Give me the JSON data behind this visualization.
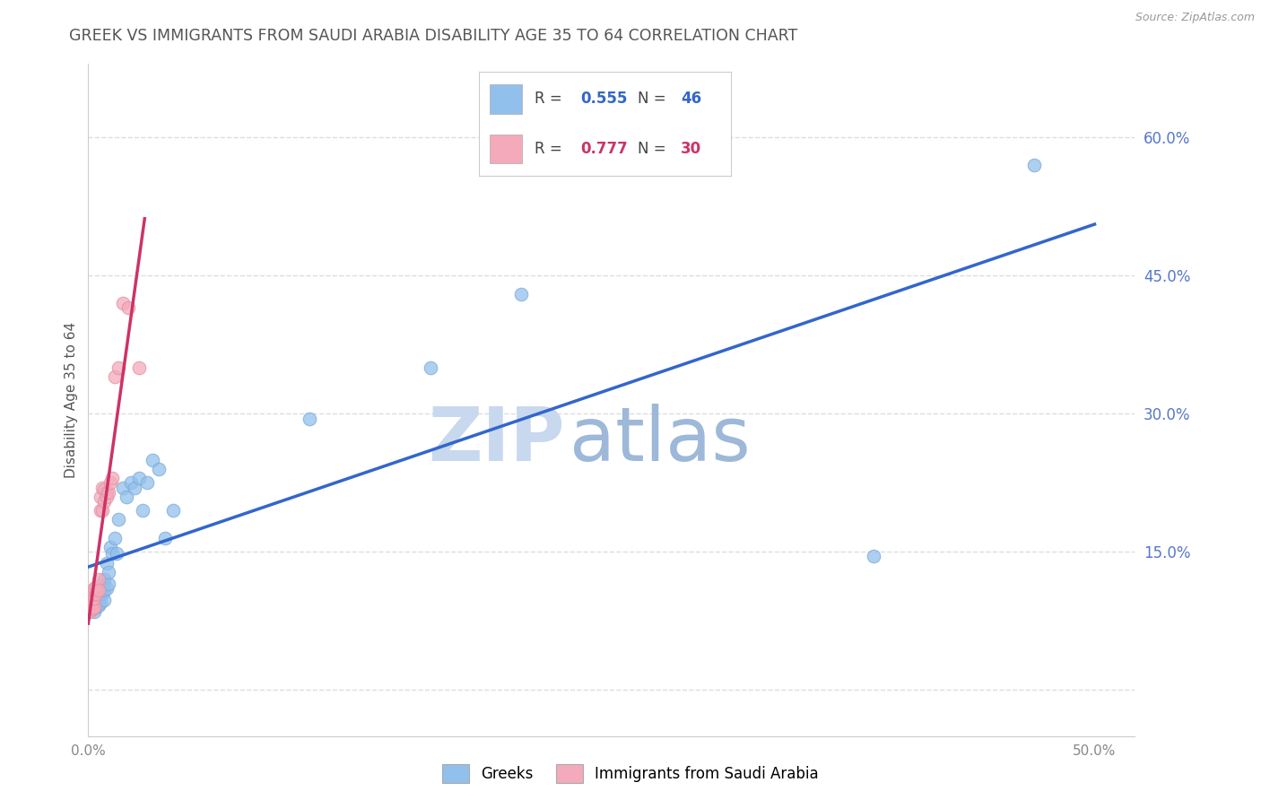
{
  "title": "GREEK VS IMMIGRANTS FROM SAUDI ARABIA DISABILITY AGE 35 TO 64 CORRELATION CHART",
  "source": "Source: ZipAtlas.com",
  "ylabel": "Disability Age 35 to 64",
  "xlim": [
    0.0,
    0.52
  ],
  "ylim": [
    -0.05,
    0.68
  ],
  "ytick_vals": [
    0.0,
    0.15,
    0.3,
    0.45,
    0.6
  ],
  "ytick_labels": [
    "",
    "15.0%",
    "30.0%",
    "45.0%",
    "60.0%"
  ],
  "xtick_vals": [
    0.0,
    0.1,
    0.2,
    0.3,
    0.4,
    0.5
  ],
  "xtick_labels": [
    "0.0%",
    "",
    "",
    "",
    "",
    "50.0%"
  ],
  "greek_color": "#92C0EC",
  "greek_edge": "#7AAAD8",
  "saudi_color": "#F4AABB",
  "saudi_edge": "#E090A0",
  "greek_line_color": "#3366CC",
  "saudi_line_color": "#CC3366",
  "watermark_zip_color": "#C8D8EE",
  "watermark_atlas_color": "#9DB8D8",
  "background_color": "#ffffff",
  "grid_color": "#DDDDDD",
  "title_color": "#555555",
  "source_color": "#999999",
  "ylabel_color": "#555555",
  "ytick_color": "#5577CC",
  "xtick_color": "#888888",
  "legend_r1_color": "#3366CC",
  "legend_n1_color": "#3366CC",
  "legend_r2_color": "#CC3366",
  "legend_n2_color": "#CC3366",
  "greeks_x": [
    0.001,
    0.001,
    0.002,
    0.002,
    0.002,
    0.003,
    0.003,
    0.003,
    0.004,
    0.004,
    0.004,
    0.005,
    0.005,
    0.005,
    0.006,
    0.006,
    0.007,
    0.007,
    0.008,
    0.008,
    0.008,
    0.009,
    0.009,
    0.01,
    0.01,
    0.011,
    0.012,
    0.013,
    0.014,
    0.015,
    0.017,
    0.019,
    0.021,
    0.023,
    0.025,
    0.027,
    0.029,
    0.032,
    0.035,
    0.038,
    0.042,
    0.11,
    0.17,
    0.215,
    0.39,
    0.47
  ],
  "greeks_y": [
    0.09,
    0.095,
    0.088,
    0.092,
    0.1,
    0.085,
    0.093,
    0.1,
    0.09,
    0.095,
    0.105,
    0.092,
    0.098,
    0.105,
    0.095,
    0.108,
    0.105,
    0.115,
    0.098,
    0.108,
    0.12,
    0.11,
    0.138,
    0.115,
    0.128,
    0.155,
    0.148,
    0.165,
    0.148,
    0.185,
    0.22,
    0.21,
    0.225,
    0.22,
    0.23,
    0.195,
    0.225,
    0.25,
    0.24,
    0.165,
    0.195,
    0.295,
    0.35,
    0.43,
    0.145,
    0.57
  ],
  "saudi_x": [
    0.0005,
    0.001,
    0.001,
    0.001,
    0.002,
    0.002,
    0.002,
    0.003,
    0.003,
    0.003,
    0.004,
    0.004,
    0.005,
    0.005,
    0.006,
    0.006,
    0.007,
    0.007,
    0.008,
    0.008,
    0.009,
    0.009,
    0.01,
    0.011,
    0.012,
    0.013,
    0.015,
    0.017,
    0.02,
    0.025
  ],
  "saudi_y": [
    0.085,
    0.09,
    0.095,
    0.1,
    0.088,
    0.095,
    0.105,
    0.09,
    0.11,
    0.1,
    0.105,
    0.112,
    0.12,
    0.108,
    0.195,
    0.21,
    0.195,
    0.22,
    0.205,
    0.218,
    0.215,
    0.21,
    0.215,
    0.225,
    0.23,
    0.34,
    0.35,
    0.42,
    0.415,
    0.35
  ],
  "greek_line_x": [
    0.0,
    0.5
  ],
  "greek_line_slope": 0.68,
  "greek_line_intercept": 0.095,
  "saudi_line_x": [
    0.0,
    0.028
  ],
  "saudi_line_slope": 14.5,
  "saudi_line_intercept": 0.055
}
